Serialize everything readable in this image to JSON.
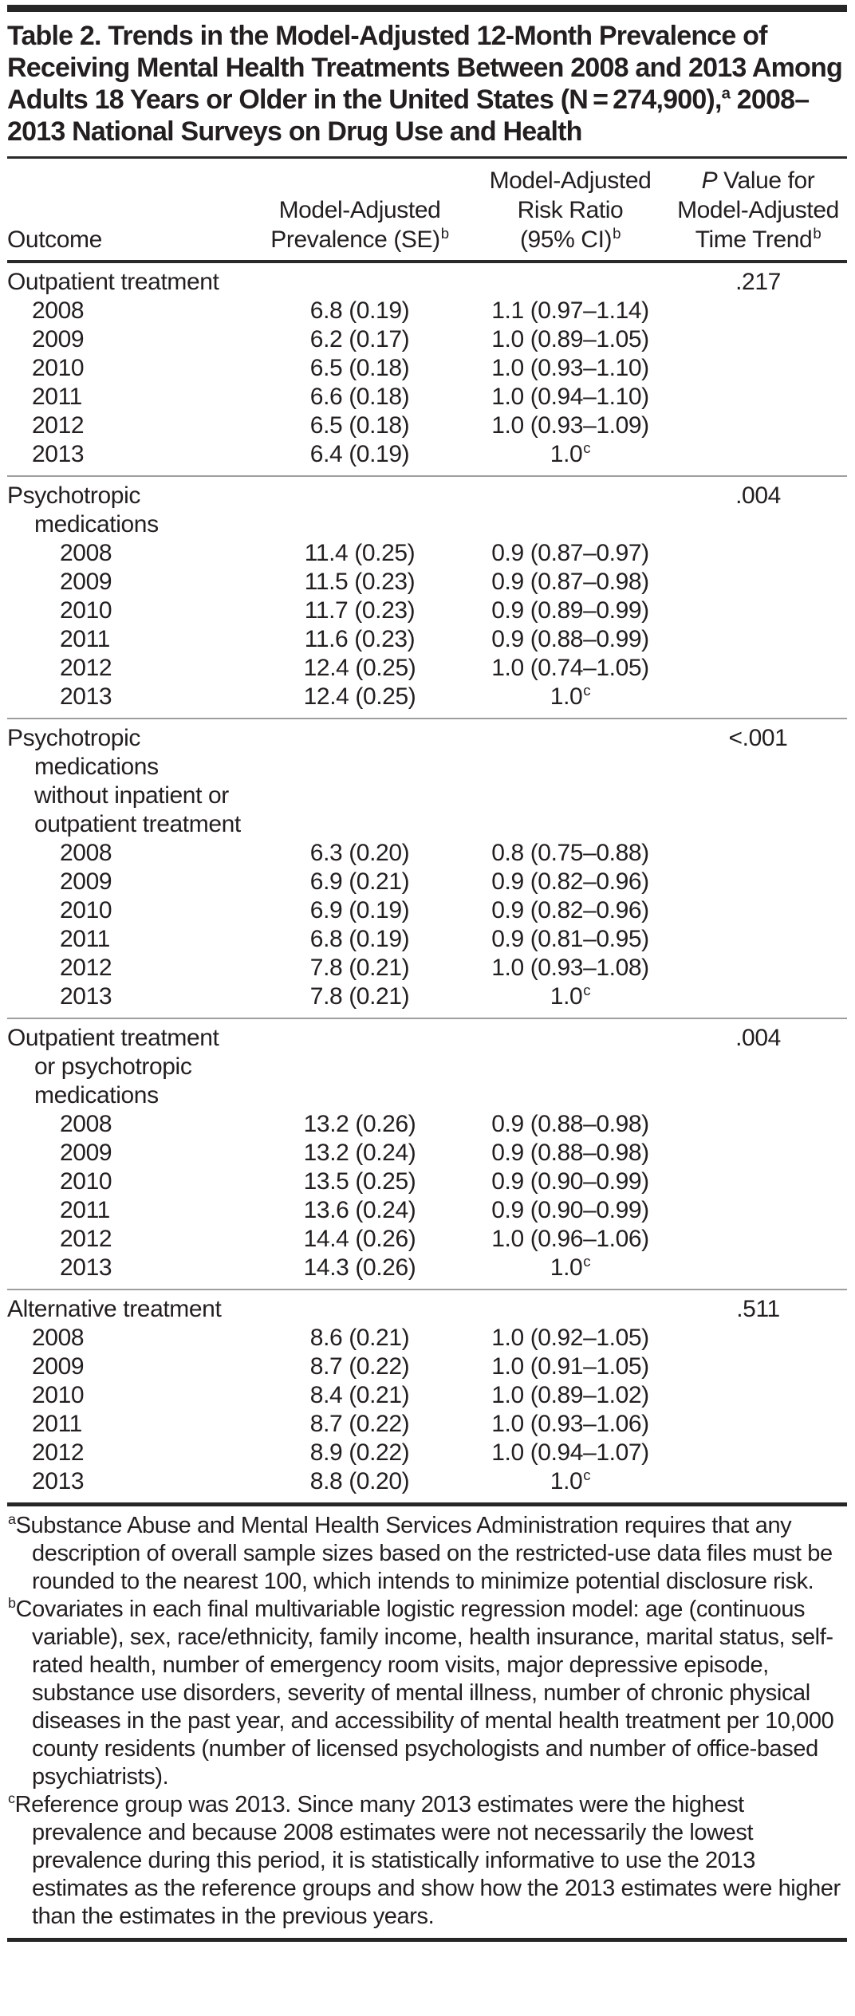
{
  "title": {
    "part1": "Table 2. Trends in the Model-Adjusted 12-Month Prevalence of Receiving Mental Health Treatments Between 2008 and 2013 Among Adults 18 Years or Older in the United States (N = 274,900),",
    "sup": "a",
    "part2": " 2008–2013 National Surveys on Drug Use and Health"
  },
  "header": {
    "col1": "Outcome",
    "col2": {
      "line1": "Model-Adjusted",
      "line2": "Prevalence (SE)",
      "sup": "b"
    },
    "col3": {
      "line1": "Model-Adjusted",
      "line2": "Risk Ratio",
      "line3": "(95% CI)",
      "sup": "b"
    },
    "col4": {
      "p_italic": "P",
      "line1": " Value for",
      "line2": "Model-Adjusted",
      "line3": "Time Trend",
      "sup": "b"
    }
  },
  "sections": [
    {
      "label": "Outpatient treatment",
      "p_value": ".217",
      "rows": [
        {
          "year": "2008",
          "prevalence": "6.8 (0.19)",
          "risk_ratio": "1.1 (0.97–1.14)"
        },
        {
          "year": "2009",
          "prevalence": "6.2 (0.17)",
          "risk_ratio": "1.0 (0.89–1.05)"
        },
        {
          "year": "2010",
          "prevalence": "6.5 (0.18)",
          "risk_ratio": "1.0 (0.93–1.10)"
        },
        {
          "year": "2011",
          "prevalence": "6.6 (0.18)",
          "risk_ratio": "1.0 (0.94–1.10)"
        },
        {
          "year": "2012",
          "prevalence": "6.5 (0.18)",
          "risk_ratio": "1.0 (0.93–1.09)"
        },
        {
          "year": "2013",
          "prevalence": "6.4 (0.19)",
          "risk_ratio": "1.0",
          "risk_sup": "c"
        }
      ]
    },
    {
      "label": "Psychotropic\nmedications",
      "p_value": ".004",
      "rows": [
        {
          "year": "2008",
          "prevalence": "11.4 (0.25)",
          "risk_ratio": "0.9 (0.87–0.97)"
        },
        {
          "year": "2009",
          "prevalence": "11.5 (0.23)",
          "risk_ratio": "0.9 (0.87–0.98)"
        },
        {
          "year": "2010",
          "prevalence": "11.7 (0.23)",
          "risk_ratio": "0.9 (0.89–0.99)"
        },
        {
          "year": "2011",
          "prevalence": "11.6 (0.23)",
          "risk_ratio": "0.9 (0.88–0.99)"
        },
        {
          "year": "2012",
          "prevalence": "12.4 (0.25)",
          "risk_ratio": "1.0 (0.74–1.05)"
        },
        {
          "year": "2013",
          "prevalence": "12.4 (0.25)",
          "risk_ratio": "1.0",
          "risk_sup": "c"
        }
      ]
    },
    {
      "label": "Psychotropic\nmedications\nwithout inpatient or\noutpatient treatment",
      "p_value": "<.001",
      "rows": [
        {
          "year": "2008",
          "prevalence": "6.3 (0.20)",
          "risk_ratio": "0.8 (0.75–0.88)"
        },
        {
          "year": "2009",
          "prevalence": "6.9 (0.21)",
          "risk_ratio": "0.9 (0.82–0.96)"
        },
        {
          "year": "2010",
          "prevalence": "6.9 (0.19)",
          "risk_ratio": "0.9 (0.82–0.96)"
        },
        {
          "year": "2011",
          "prevalence": "6.8 (0.19)",
          "risk_ratio": "0.9 (0.81–0.95)"
        },
        {
          "year": "2012",
          "prevalence": "7.8 (0.21)",
          "risk_ratio": "1.0 (0.93–1.08)"
        },
        {
          "year": "2013",
          "prevalence": "7.8 (0.21)",
          "risk_ratio": "1.0",
          "risk_sup": "c"
        }
      ]
    },
    {
      "label": "Outpatient treatment\nor psychotropic\nmedications",
      "p_value": ".004",
      "rows": [
        {
          "year": "2008",
          "prevalence": "13.2 (0.26)",
          "risk_ratio": "0.9 (0.88–0.98)"
        },
        {
          "year": "2009",
          "prevalence": "13.2 (0.24)",
          "risk_ratio": "0.9 (0.88–0.98)"
        },
        {
          "year": "2010",
          "prevalence": "13.5 (0.25)",
          "risk_ratio": "0.9 (0.90–0.99)"
        },
        {
          "year": "2011",
          "prevalence": "13.6 (0.24)",
          "risk_ratio": "0.9 (0.90–0.99)"
        },
        {
          "year": "2012",
          "prevalence": "14.4 (0.26)",
          "risk_ratio": "1.0 (0.96–1.06)"
        },
        {
          "year": "2013",
          "prevalence": "14.3 (0.26)",
          "risk_ratio": "1.0",
          "risk_sup": "c"
        }
      ]
    },
    {
      "label": "Alternative treatment",
      "p_value": ".511",
      "rows": [
        {
          "year": "2008",
          "prevalence": "8.6 (0.21)",
          "risk_ratio": "1.0 (0.92–1.05)"
        },
        {
          "year": "2009",
          "prevalence": "8.7 (0.22)",
          "risk_ratio": "1.0 (0.91–1.05)"
        },
        {
          "year": "2010",
          "prevalence": "8.4 (0.21)",
          "risk_ratio": "1.0 (0.89–1.02)"
        },
        {
          "year": "2011",
          "prevalence": "8.7 (0.22)",
          "risk_ratio": "1.0 (0.93–1.06)"
        },
        {
          "year": "2012",
          "prevalence": "8.9 (0.22)",
          "risk_ratio": "1.0 (0.94–1.07)"
        },
        {
          "year": "2013",
          "prevalence": "8.8 (0.20)",
          "risk_ratio": "1.0",
          "risk_sup": "c"
        }
      ]
    }
  ],
  "footnotes": [
    {
      "marker": "a",
      "text": "Substance Abuse and Mental Health Services Administration requires that any description of overall sample sizes based on the restricted-use data files must be rounded to the nearest 100, which intends to minimize potential disclosure risk."
    },
    {
      "marker": "b",
      "text": "Covariates in each final multivariable logistic regression model: age (continuous variable), sex, race/ethnicity, family income, health insurance, marital status, self-rated health, number of emergency room visits, major depressive episode, substance use disorders, severity of mental illness, number of chronic physical diseases in the past year, and accessibility of mental health treatment per 10,000 county residents (number of licensed psychologists and number of office-based psychiatrists)."
    },
    {
      "marker": "c",
      "text": "Reference group was 2013. Since many 2013 estimates were the highest prevalence and because 2008 estimates were not necessarily the lowest prevalence during this period, it is statistically informative to use the 2013 estimates as the reference groups and show how the 2013 estimates were higher than the estimates in the previous years."
    }
  ],
  "colors": {
    "text": "#231f20",
    "rule_dark": "#262626",
    "rule_light": "#9e9e9e"
  }
}
